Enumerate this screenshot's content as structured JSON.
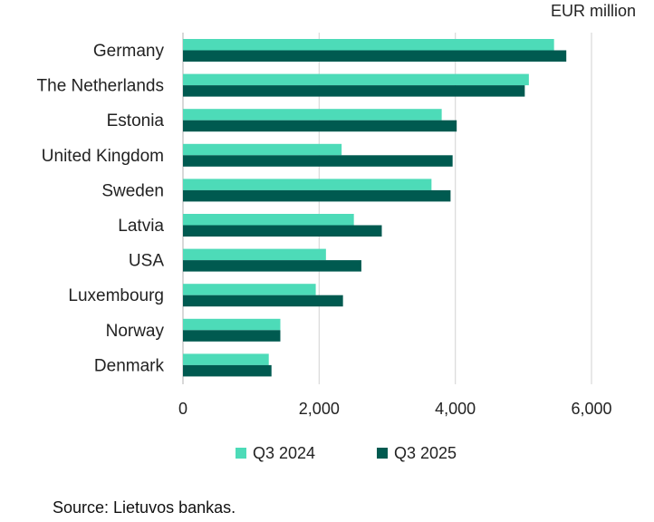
{
  "unit_label": "EUR million",
  "source": "Source: Lietuvos bankas.",
  "colors": {
    "q3_2024": "#4ddbb8",
    "q3_2025": "#005a50",
    "grid": "#d9d9d9",
    "axis": "#bfbfbf"
  },
  "chart_data": {
    "type": "bar",
    "orientation": "horizontal",
    "categories": [
      "Germany",
      "The Netherlands",
      "Estonia",
      "United Kingdom",
      "Sweden",
      "Latvia",
      "USA",
      "Luxembourg",
      "Norway",
      "Denmark"
    ],
    "series": [
      {
        "name": "Q3 2024",
        "values": [
          5450,
          5080,
          3800,
          2330,
          3650,
          2510,
          2100,
          1950,
          1430,
          1260
        ]
      },
      {
        "name": "Q3 2025",
        "values": [
          5630,
          5020,
          4020,
          3960,
          3930,
          2920,
          2620,
          2350,
          1430,
          1300
        ]
      }
    ],
    "xlim": [
      0,
      6000
    ],
    "xticks": [
      0,
      2000,
      4000,
      6000
    ],
    "xtick_labels": [
      "0",
      "2,000",
      "4,000",
      "6,000"
    ],
    "grid": true,
    "legend_position": "bottom"
  }
}
